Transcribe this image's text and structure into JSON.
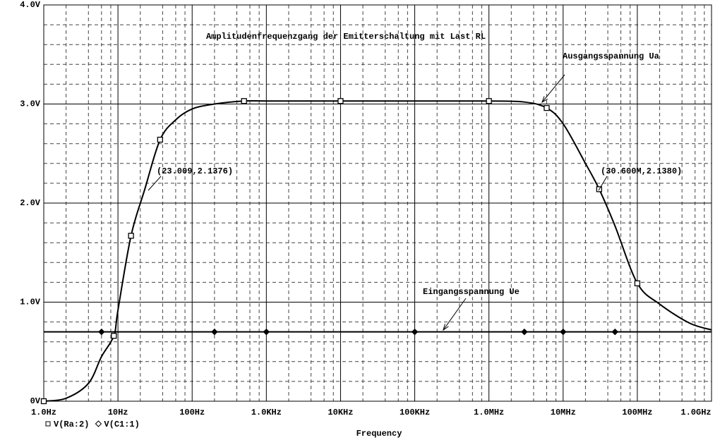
{
  "chart_data": {
    "type": "line",
    "title": "Amplitudenfrequenzgang der Emitterschaltung mit Last RL",
    "x_label": "Frequency",
    "xscale": "log",
    "x": [
      1,
      2,
      4,
      6,
      8.8,
      10,
      15,
      23,
      37,
      60,
      100,
      200,
      500,
      1000,
      10000,
      100000,
      1000000,
      3000000,
      6000000,
      10000000,
      20000000,
      30600000,
      50000000,
      100000000,
      200000000,
      500000000,
      1000000000
    ],
    "series": [
      {
        "name": "V(Ra:2)",
        "color": "#000000",
        "marker": "square",
        "values": [
          0,
          0.03,
          0.18,
          0.45,
          0.66,
          0.92,
          1.67,
          2.14,
          2.64,
          2.84,
          2.95,
          3.0,
          3.03,
          3.03,
          3.03,
          3.03,
          3.03,
          3.02,
          2.96,
          2.8,
          2.4,
          2.14,
          1.77,
          1.19,
          0.98,
          0.79,
          0.72
        ]
      },
      {
        "name": "V(C1:1)",
        "color": "#000000",
        "marker": "diamond",
        "values": [
          0.7,
          0.7,
          0.7,
          0.7,
          0.7,
          0.7,
          0.7,
          0.7,
          0.7,
          0.7,
          0.7,
          0.7,
          0.7,
          0.7,
          0.7,
          0.7,
          0.7,
          0.7,
          0.7,
          0.7,
          0.7,
          0.7,
          0.7,
          0.7,
          0.7,
          0.7,
          0.7
        ]
      }
    ],
    "xlim": [
      1,
      1000000000
    ],
    "ylim": [
      0,
      4
    ],
    "xticks": [
      {
        "value": 1,
        "label": "1.0Hz"
      },
      {
        "value": 10,
        "label": "10Hz"
      },
      {
        "value": 100,
        "label": "100Hz"
      },
      {
        "value": 1000,
        "label": "1.0KHz"
      },
      {
        "value": 10000,
        "label": "10KHz"
      },
      {
        "value": 100000,
        "label": "100KHz"
      },
      {
        "value": 1000000,
        "label": "1.0MHz"
      },
      {
        "value": 10000000,
        "label": "10MHz"
      },
      {
        "value": 100000000,
        "label": "100MHz"
      },
      {
        "value": 1000000000,
        "label": "1.0GHz"
      }
    ],
    "yticks": [
      {
        "value": 0,
        "label": "0V"
      },
      {
        "value": 1,
        "label": "1.0V"
      },
      {
        "value": 2,
        "label": "2.0V"
      },
      {
        "value": 3,
        "label": "3.0V"
      },
      {
        "value": 4,
        "label": "4.0V"
      }
    ],
    "xminorticks": [
      2,
      4,
      6,
      8,
      20,
      40,
      60,
      80,
      200,
      400,
      600,
      800,
      2000,
      4000,
      6000,
      8000,
      20000,
      40000,
      60000,
      80000,
      200000,
      400000,
      600000,
      800000,
      2000000,
      4000000,
      6000000,
      8000000,
      20000000,
      40000000,
      60000000,
      80000000,
      200000000,
      400000000,
      600000000,
      800000000
    ],
    "yminorticks": [
      0.2,
      0.4,
      0.6,
      0.8,
      1.2,
      1.4,
      1.6,
      1.8,
      2.2,
      2.4,
      2.6,
      2.8,
      3.2,
      3.4,
      3.6,
      3.8
    ],
    "grid": true,
    "legend": "bottom-left",
    "annotations": [
      {
        "text": "Ausgangsspannung Ua"
      },
      {
        "text": "Eingangsspannung Ue"
      },
      {
        "text": "(23.009,2.1376)"
      },
      {
        "text": "(30.600M,2.1380)"
      }
    ]
  }
}
